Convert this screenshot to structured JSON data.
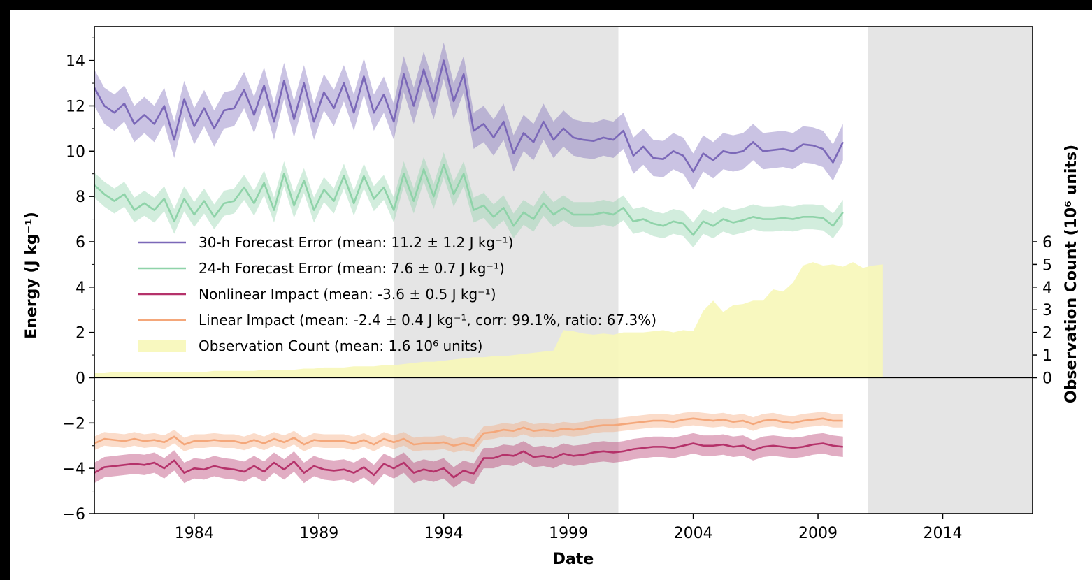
{
  "chart_data": {
    "type": "line",
    "xlabel": "Date",
    "ylabel": "Energy (J kg⁻¹)",
    "ylabel_right": "Observation Count (10⁶ units)",
    "xlim": [
      1980.0,
      2017.6
    ],
    "ylim": [
      -6.0,
      15.5
    ],
    "ylim_right": [
      -6.0,
      15.5
    ],
    "x_ticks": [
      1984,
      1989,
      1994,
      1999,
      2004,
      2009,
      2014
    ],
    "y_ticks": [
      -6,
      -4,
      -2,
      0,
      2,
      4,
      6,
      8,
      10,
      12,
      14
    ],
    "y_right_ticks": [
      0,
      1,
      2,
      3,
      4,
      5,
      6
    ],
    "shaded_periods": [
      [
        1992.0,
        2001.0
      ],
      [
        2011.0,
        2017.6
      ]
    ],
    "zero_line": 0,
    "legend_position": "center-left",
    "x": [
      1980.0,
      1980.4,
      1980.8,
      1981.2,
      1981.6,
      1982.0,
      1982.4,
      1982.8,
      1983.2,
      1983.6,
      1984.0,
      1984.4,
      1984.8,
      1985.2,
      1985.6,
      1986.0,
      1986.4,
      1986.8,
      1987.2,
      1987.6,
      1988.0,
      1988.4,
      1988.8,
      1989.2,
      1989.6,
      1990.0,
      1990.4,
      1990.8,
      1991.2,
      1991.6,
      1992.0,
      1992.4,
      1992.8,
      1993.2,
      1993.6,
      1994.0,
      1994.4,
      1994.8,
      1995.2,
      1995.6,
      1996.0,
      1996.4,
      1996.8,
      1997.2,
      1997.6,
      1998.0,
      1998.4,
      1998.8,
      1999.2,
      1999.6,
      2000.0,
      2000.4,
      2000.8,
      2001.2,
      2001.6,
      2002.0,
      2002.4,
      2002.8,
      2003.2,
      2003.6,
      2004.0,
      2004.4,
      2004.8,
      2005.2,
      2005.6,
      2006.0,
      2006.4,
      2006.8,
      2007.2,
      2007.6,
      2008.0,
      2008.4,
      2008.8,
      2009.2,
      2009.6,
      2010.0,
      2010.4,
      2010.8,
      2011.2,
      2011.6,
      2012.0,
      2012.4,
      2012.8,
      2013.2,
      2013.6,
      2014.0,
      2014.4,
      2014.8,
      2015.2,
      2015.6,
      2016.0,
      2016.4,
      2016.8,
      2017.2,
      2017.6
    ],
    "series": [
      {
        "name": "30-h Forecast Error (mean: 11.2 ± 1.2 J kg⁻¹)",
        "color": "#7b68b8",
        "band_halfwidth": 0.8,
        "values": [
          12.8,
          12.0,
          11.7,
          12.1,
          11.2,
          11.6,
          11.2,
          12.0,
          10.5,
          12.3,
          11.1,
          11.9,
          11.0,
          11.8,
          11.9,
          12.7,
          11.6,
          12.9,
          11.3,
          13.1,
          11.4,
          13.0,
          11.3,
          12.6,
          11.9,
          13.0,
          11.7,
          13.3,
          11.7,
          12.5,
          11.3,
          13.4,
          12.0,
          13.6,
          12.2,
          14.0,
          12.2,
          13.4,
          10.9,
          11.2,
          10.6,
          11.3,
          9.9,
          10.8,
          10.4,
          11.3,
          10.5,
          11.0,
          10.6,
          10.5,
          10.45,
          10.6,
          10.5,
          10.9,
          9.8,
          10.2,
          9.7,
          9.65,
          10.0,
          9.8,
          9.1,
          9.9,
          9.6,
          10.0,
          9.9,
          10.0,
          10.4,
          10.0,
          10.05,
          10.1,
          10.0,
          10.3,
          10.25,
          10.1,
          9.5,
          10.4,
          null,
          null,
          null,
          null,
          null,
          null,
          null,
          null,
          null,
          null,
          null,
          null,
          null,
          null,
          null,
          null,
          null,
          null,
          null
        ]
      },
      {
        "name": "24-h Forecast Error (mean: 7.6 ± 0.7 J kg⁻¹)",
        "color": "#8fd3a9",
        "band_halfwidth": 0.55,
        "values": [
          8.5,
          8.1,
          7.8,
          8.1,
          7.4,
          7.7,
          7.4,
          7.9,
          6.9,
          7.9,
          7.2,
          7.8,
          7.1,
          7.7,
          7.8,
          8.4,
          7.7,
          8.6,
          7.4,
          9.0,
          7.6,
          8.7,
          7.4,
          8.3,
          7.8,
          8.9,
          7.7,
          8.9,
          7.9,
          8.4,
          7.4,
          9.0,
          7.8,
          9.2,
          8.0,
          9.4,
          8.1,
          9.0,
          7.4,
          7.6,
          7.1,
          7.5,
          6.7,
          7.3,
          7.0,
          7.7,
          7.2,
          7.5,
          7.2,
          7.2,
          7.2,
          7.3,
          7.2,
          7.5,
          6.9,
          7.0,
          6.8,
          6.7,
          6.9,
          6.8,
          6.3,
          6.9,
          6.7,
          7.0,
          6.85,
          6.95,
          7.1,
          7.0,
          7.0,
          7.05,
          7.0,
          7.1,
          7.1,
          7.05,
          6.7,
          7.3,
          null,
          null,
          null,
          null,
          null,
          null,
          null,
          null,
          null,
          null,
          null,
          null,
          null,
          null,
          null,
          null,
          null,
          null,
          null
        ]
      },
      {
        "name": "Nonlinear Impact (mean: -3.6 ± 0.5 J kg⁻¹)",
        "color": "#b5326a",
        "band_halfwidth": 0.45,
        "values": [
          -4.2,
          -3.95,
          -3.9,
          -3.85,
          -3.8,
          -3.85,
          -3.75,
          -4.0,
          -3.65,
          -4.2,
          -4.0,
          -4.05,
          -3.9,
          -4.0,
          -4.05,
          -4.15,
          -3.9,
          -4.15,
          -3.75,
          -4.05,
          -3.7,
          -4.2,
          -3.9,
          -4.05,
          -4.1,
          -4.05,
          -4.2,
          -3.95,
          -4.3,
          -3.8,
          -4.0,
          -3.75,
          -4.2,
          -4.05,
          -4.15,
          -4.0,
          -4.4,
          -4.1,
          -4.25,
          -3.55,
          -3.55,
          -3.4,
          -3.45,
          -3.25,
          -3.5,
          -3.45,
          -3.55,
          -3.35,
          -3.45,
          -3.4,
          -3.3,
          -3.25,
          -3.3,
          -3.25,
          -3.15,
          -3.1,
          -3.05,
          -3.05,
          -3.1,
          -3.0,
          -2.9,
          -3.0,
          -3.0,
          -2.95,
          -3.05,
          -3.0,
          -3.2,
          -3.05,
          -3.0,
          -3.05,
          -3.1,
          -3.05,
          -2.95,
          -2.9,
          -3.0,
          -3.05,
          null,
          null,
          null,
          null,
          null,
          null,
          null,
          null,
          null,
          null,
          null,
          null,
          null,
          null,
          null,
          null,
          null,
          null,
          null
        ]
      },
      {
        "name": "Linear Impact (mean: -2.4 ± 0.4 J kg⁻¹, corr: 99.1%, ratio: 67.3%)",
        "color": "#f4a77a",
        "band_halfwidth": 0.3,
        "values": [
          -2.9,
          -2.7,
          -2.75,
          -2.8,
          -2.7,
          -2.8,
          -2.75,
          -2.85,
          -2.6,
          -2.95,
          -2.8,
          -2.8,
          -2.75,
          -2.8,
          -2.8,
          -2.9,
          -2.75,
          -2.9,
          -2.7,
          -2.85,
          -2.65,
          -2.95,
          -2.75,
          -2.8,
          -2.8,
          -2.8,
          -2.9,
          -2.75,
          -2.95,
          -2.7,
          -2.85,
          -2.7,
          -2.95,
          -2.9,
          -2.9,
          -2.85,
          -3.0,
          -2.9,
          -3.0,
          -2.45,
          -2.4,
          -2.3,
          -2.35,
          -2.2,
          -2.35,
          -2.3,
          -2.35,
          -2.25,
          -2.3,
          -2.25,
          -2.15,
          -2.1,
          -2.1,
          -2.05,
          -2.0,
          -1.95,
          -1.9,
          -1.9,
          -1.95,
          -1.85,
          -1.8,
          -1.85,
          -1.9,
          -1.85,
          -1.95,
          -1.9,
          -2.05,
          -1.9,
          -1.85,
          -1.95,
          -2.0,
          -1.9,
          -1.85,
          -1.8,
          -1.9,
          -1.9,
          null,
          null,
          null,
          null,
          null,
          null,
          null,
          null,
          null,
          null,
          null,
          null,
          null,
          null,
          null,
          null,
          null,
          null,
          null
        ]
      },
      {
        "name": "Observation Count (mean: 1.6 10⁶ units)",
        "color": "#f7f7b8",
        "axis": "right",
        "type": "area",
        "values": [
          0.2,
          0.2,
          0.25,
          0.25,
          0.25,
          0.25,
          0.25,
          0.25,
          0.25,
          0.25,
          0.25,
          0.25,
          0.3,
          0.3,
          0.3,
          0.3,
          0.3,
          0.35,
          0.35,
          0.35,
          0.35,
          0.4,
          0.4,
          0.45,
          0.45,
          0.45,
          0.5,
          0.5,
          0.5,
          0.55,
          0.55,
          0.6,
          0.65,
          0.7,
          0.7,
          0.75,
          0.8,
          0.85,
          0.9,
          0.9,
          0.95,
          0.95,
          1.0,
          1.05,
          1.1,
          1.15,
          1.2,
          2.1,
          2.05,
          1.95,
          1.9,
          1.95,
          1.9,
          2.0,
          2.0,
          2.0,
          2.05,
          2.1,
          2.0,
          2.1,
          2.05,
          2.95,
          3.4,
          2.9,
          3.2,
          3.25,
          3.4,
          3.4,
          3.9,
          3.8,
          4.2,
          4.95,
          5.1,
          4.95,
          5.0,
          4.9,
          5.1,
          4.85,
          4.95,
          5.0,
          null,
          null,
          null,
          null,
          null,
          null,
          null,
          null,
          null,
          null,
          null,
          null,
          null,
          null,
          null
        ]
      }
    ]
  }
}
